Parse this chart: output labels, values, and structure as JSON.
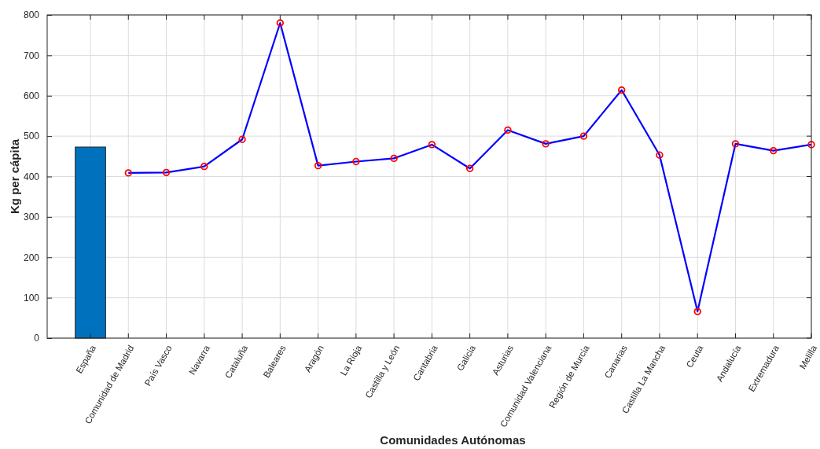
{
  "chart_data": {
    "type": "line",
    "xlabel": "Comunidades Autónomas",
    "ylabel": "Kg per cápita",
    "categories": [
      "España",
      "Comunidad de Madrid",
      "País Vasco",
      "Navarra",
      "Cataluña",
      "Baleares",
      "Aragón",
      "La Rioja",
      "Castilla y León",
      "Cantabria",
      "Galicia",
      "Asturias",
      "Comunidad Valenciana",
      "Región de Murcia",
      "Canarias",
      "Castilla La Mancha",
      "Ceuta",
      "Andalucía",
      "Extremadura",
      "Melilla"
    ],
    "series": [
      {
        "type": "bar",
        "color": "#0072bd",
        "values": [
          473,
          null,
          null,
          null,
          null,
          null,
          null,
          null,
          null,
          null,
          null,
          null,
          null,
          null,
          null,
          null,
          null,
          null,
          null,
          null
        ]
      },
      {
        "color": "#0000ff",
        "marker": "circle",
        "line_style": "solid",
        "colors": [
          null,
          "#ff0000",
          "#ff0000",
          "#ff0000",
          "#ff0000",
          "#ff0000",
          "#ff0000",
          "#ff0000",
          "#ff0000",
          "#ff0000",
          "#ff0000",
          "#ff0000",
          "#ff0000",
          "#ff0000",
          "#ff0000",
          "#ff0000",
          "#ff0000",
          "#ff0000",
          "#ff0000",
          "#ff0000"
        ],
        "values": [
          null,
          409,
          410,
          425,
          492,
          780,
          427,
          437,
          445,
          479,
          420,
          515,
          481,
          500,
          614,
          453,
          66,
          481,
          464,
          479
        ]
      }
    ],
    "ylim": [
      0,
      800
    ],
    "yticks": [
      0,
      100,
      200,
      300,
      400,
      500,
      600,
      700,
      800
    ],
    "grid": true
  }
}
